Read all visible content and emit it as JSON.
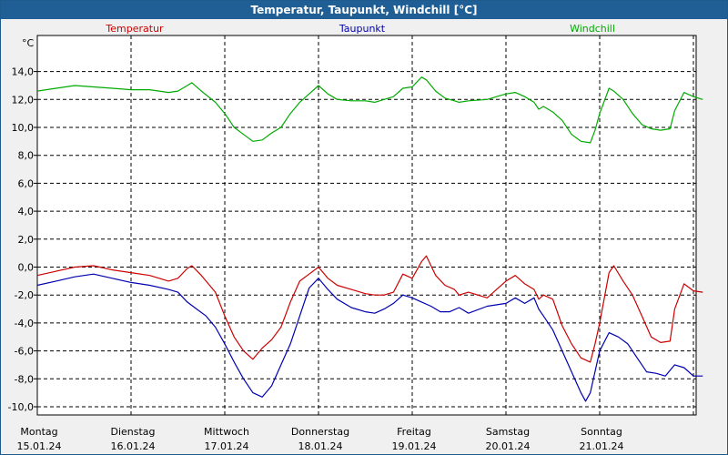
{
  "chart_data": {
    "type": "line",
    "title": "Temperatur, Taupunkt, Windchill [°C]",
    "ylabel": "°C",
    "ylim": [
      -11,
      16
    ],
    "yticks": [
      "14,0",
      "12,0",
      "10,0",
      "8,0",
      "6,0",
      "4,0",
      "2,0",
      "0,0",
      "-2,0",
      "-4,0",
      "-6,0",
      "-8,0",
      "-10,0"
    ],
    "ytick_values": [
      14,
      12,
      10,
      8,
      6,
      4,
      2,
      0,
      -2,
      -4,
      -6,
      -8,
      -10
    ],
    "xlim": [
      0,
      7.1
    ],
    "days": [
      {
        "day": "Montag",
        "date": "15.01.24"
      },
      {
        "day": "Dienstag",
        "date": "16.01.24"
      },
      {
        "day": "Mittwoch",
        "date": "17.01.24"
      },
      {
        "day": "Donnerstag",
        "date": "18.01.24"
      },
      {
        "day": "Freitag",
        "date": "19.01.24"
      },
      {
        "day": "Samstag",
        "date": "20.01.24"
      },
      {
        "day": "Sonntag",
        "date": "21.01.24"
      }
    ],
    "grid": true,
    "series": [
      {
        "name": "Temperatur",
        "color": "#cc0000",
        "points": [
          [
            0.0,
            -0.6
          ],
          [
            0.2,
            -0.3
          ],
          [
            0.4,
            0.0
          ],
          [
            0.6,
            0.1
          ],
          [
            0.8,
            -0.2
          ],
          [
            1.0,
            -0.4
          ],
          [
            1.2,
            -0.6
          ],
          [
            1.4,
            -1.0
          ],
          [
            1.5,
            -0.8
          ],
          [
            1.6,
            -0.1
          ],
          [
            1.65,
            0.1
          ],
          [
            1.75,
            -0.6
          ],
          [
            1.9,
            -1.8
          ],
          [
            2.0,
            -3.5
          ],
          [
            2.1,
            -5.0
          ],
          [
            2.2,
            -6.0
          ],
          [
            2.3,
            -6.6
          ],
          [
            2.4,
            -5.8
          ],
          [
            2.5,
            -5.2
          ],
          [
            2.6,
            -4.3
          ],
          [
            2.7,
            -2.5
          ],
          [
            2.8,
            -1.0
          ],
          [
            2.9,
            -0.5
          ],
          [
            3.0,
            0.0
          ],
          [
            3.1,
            -0.8
          ],
          [
            3.2,
            -1.3
          ],
          [
            3.35,
            -1.6
          ],
          [
            3.5,
            -1.9
          ],
          [
            3.6,
            -2.0
          ],
          [
            3.7,
            -2.0
          ],
          [
            3.8,
            -1.8
          ],
          [
            3.9,
            -0.5
          ],
          [
            4.0,
            -0.8
          ],
          [
            4.1,
            0.4
          ],
          [
            4.15,
            0.8
          ],
          [
            4.25,
            -0.6
          ],
          [
            4.35,
            -1.3
          ],
          [
            4.45,
            -1.6
          ],
          [
            4.5,
            -2.0
          ],
          [
            4.6,
            -1.8
          ],
          [
            4.8,
            -2.2
          ],
          [
            4.9,
            -1.6
          ],
          [
            5.0,
            -1.0
          ],
          [
            5.1,
            -0.6
          ],
          [
            5.2,
            -1.2
          ],
          [
            5.3,
            -1.6
          ],
          [
            5.35,
            -2.3
          ],
          [
            5.4,
            -2.0
          ],
          [
            5.5,
            -2.3
          ],
          [
            5.6,
            -4.2
          ],
          [
            5.7,
            -5.5
          ],
          [
            5.8,
            -6.5
          ],
          [
            5.9,
            -6.8
          ],
          [
            5.95,
            -5.5
          ],
          [
            6.0,
            -4.0
          ],
          [
            6.1,
            -0.4
          ],
          [
            6.15,
            0.1
          ],
          [
            6.25,
            -1.0
          ],
          [
            6.35,
            -2.0
          ],
          [
            6.45,
            -3.5
          ],
          [
            6.55,
            -5.0
          ],
          [
            6.65,
            -5.4
          ],
          [
            6.75,
            -5.3
          ],
          [
            6.8,
            -3.0
          ],
          [
            6.9,
            -1.2
          ],
          [
            7.0,
            -1.7
          ],
          [
            7.1,
            -1.8
          ]
        ]
      },
      {
        "name": "Taupunkt",
        "color": "#0000b0",
        "points": [
          [
            0.0,
            -1.3
          ],
          [
            0.2,
            -1.0
          ],
          [
            0.4,
            -0.7
          ],
          [
            0.6,
            -0.5
          ],
          [
            0.8,
            -0.8
          ],
          [
            1.0,
            -1.1
          ],
          [
            1.2,
            -1.3
          ],
          [
            1.4,
            -1.6
          ],
          [
            1.5,
            -1.8
          ],
          [
            1.6,
            -2.5
          ],
          [
            1.7,
            -3.0
          ],
          [
            1.8,
            -3.5
          ],
          [
            1.9,
            -4.3
          ],
          [
            2.0,
            -5.5
          ],
          [
            2.1,
            -6.8
          ],
          [
            2.2,
            -8.0
          ],
          [
            2.3,
            -9.0
          ],
          [
            2.4,
            -9.3
          ],
          [
            2.5,
            -8.5
          ],
          [
            2.6,
            -7.0
          ],
          [
            2.7,
            -5.5
          ],
          [
            2.8,
            -3.5
          ],
          [
            2.9,
            -1.5
          ],
          [
            3.0,
            -0.8
          ],
          [
            3.1,
            -1.6
          ],
          [
            3.2,
            -2.3
          ],
          [
            3.35,
            -2.9
          ],
          [
            3.5,
            -3.2
          ],
          [
            3.6,
            -3.3
          ],
          [
            3.7,
            -3.0
          ],
          [
            3.8,
            -2.6
          ],
          [
            3.9,
            -2.0
          ],
          [
            4.0,
            -2.2
          ],
          [
            4.1,
            -2.5
          ],
          [
            4.2,
            -2.8
          ],
          [
            4.3,
            -3.2
          ],
          [
            4.4,
            -3.2
          ],
          [
            4.5,
            -2.9
          ],
          [
            4.6,
            -3.3
          ],
          [
            4.8,
            -2.8
          ],
          [
            5.0,
            -2.6
          ],
          [
            5.1,
            -2.2
          ],
          [
            5.2,
            -2.6
          ],
          [
            5.3,
            -2.2
          ],
          [
            5.35,
            -3.0
          ],
          [
            5.4,
            -3.5
          ],
          [
            5.5,
            -4.5
          ],
          [
            5.6,
            -6.0
          ],
          [
            5.7,
            -7.5
          ],
          [
            5.8,
            -9.0
          ],
          [
            5.85,
            -9.6
          ],
          [
            5.9,
            -9.0
          ],
          [
            6.0,
            -6.0
          ],
          [
            6.1,
            -4.7
          ],
          [
            6.2,
            -5.0
          ],
          [
            6.3,
            -5.5
          ],
          [
            6.4,
            -6.5
          ],
          [
            6.5,
            -7.5
          ],
          [
            6.6,
            -7.6
          ],
          [
            6.7,
            -7.8
          ],
          [
            6.8,
            -7.0
          ],
          [
            6.9,
            -7.2
          ],
          [
            7.0,
            -7.8
          ],
          [
            7.1,
            -7.8
          ]
        ]
      },
      {
        "name": "Windchill",
        "color": "#00aa00",
        "points": [
          [
            0.0,
            12.6
          ],
          [
            0.2,
            12.8
          ],
          [
            0.4,
            13.0
          ],
          [
            0.6,
            12.9
          ],
          [
            0.8,
            12.8
          ],
          [
            1.0,
            12.7
          ],
          [
            1.2,
            12.7
          ],
          [
            1.4,
            12.5
          ],
          [
            1.5,
            12.6
          ],
          [
            1.6,
            13.0
          ],
          [
            1.65,
            13.2
          ],
          [
            1.75,
            12.6
          ],
          [
            1.9,
            11.8
          ],
          [
            2.0,
            11.0
          ],
          [
            2.1,
            10.0
          ],
          [
            2.2,
            9.5
          ],
          [
            2.3,
            9.0
          ],
          [
            2.4,
            9.1
          ],
          [
            2.5,
            9.6
          ],
          [
            2.6,
            10.0
          ],
          [
            2.7,
            11.0
          ],
          [
            2.8,
            11.8
          ],
          [
            2.9,
            12.4
          ],
          [
            3.0,
            13.0
          ],
          [
            3.1,
            12.4
          ],
          [
            3.2,
            12.0
          ],
          [
            3.35,
            11.9
          ],
          [
            3.5,
            11.9
          ],
          [
            3.6,
            11.8
          ],
          [
            3.7,
            12.0
          ],
          [
            3.8,
            12.2
          ],
          [
            3.9,
            12.8
          ],
          [
            4.0,
            12.9
          ],
          [
            4.1,
            13.6
          ],
          [
            4.15,
            13.4
          ],
          [
            4.25,
            12.6
          ],
          [
            4.35,
            12.1
          ],
          [
            4.45,
            11.9
          ],
          [
            4.5,
            11.8
          ],
          [
            4.6,
            11.9
          ],
          [
            4.8,
            12.0
          ],
          [
            4.9,
            12.2
          ],
          [
            5.0,
            12.4
          ],
          [
            5.1,
            12.5
          ],
          [
            5.2,
            12.2
          ],
          [
            5.3,
            11.8
          ],
          [
            5.35,
            11.3
          ],
          [
            5.4,
            11.5
          ],
          [
            5.5,
            11.1
          ],
          [
            5.6,
            10.5
          ],
          [
            5.7,
            9.5
          ],
          [
            5.8,
            9.0
          ],
          [
            5.9,
            8.9
          ],
          [
            5.95,
            9.8
          ],
          [
            6.0,
            11.0
          ],
          [
            6.1,
            12.8
          ],
          [
            6.15,
            12.6
          ],
          [
            6.25,
            12.0
          ],
          [
            6.35,
            11.0
          ],
          [
            6.45,
            10.2
          ],
          [
            6.55,
            9.9
          ],
          [
            6.65,
            9.8
          ],
          [
            6.75,
            9.9
          ],
          [
            6.8,
            11.2
          ],
          [
            6.9,
            12.5
          ],
          [
            7.0,
            12.2
          ],
          [
            7.1,
            12.0
          ]
        ]
      }
    ]
  }
}
